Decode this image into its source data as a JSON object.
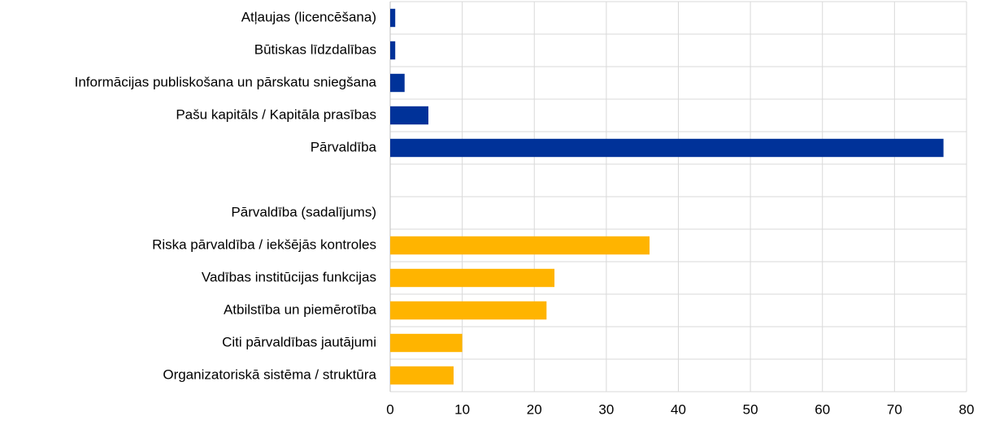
{
  "chart_data": {
    "type": "bar",
    "orientation": "horizontal",
    "categories": [
      "Atļaujas (licencēšana)",
      "Būtiskas līdzdalības",
      "Informācijas publiskošana un pārskatu sniegšana",
      "Pašu kapitāls / Kapitāla prasības",
      "Pārvaldība",
      null,
      "Pārvaldība (sadalījums)",
      "Riska pārvaldība / iekšējās kontroles",
      "Vadības institūcijas funkcijas",
      "Atbilstība un piemērotība",
      "Citi pārvaldības jautājumi",
      "Organizatoriskā sistēma / struktūra"
    ],
    "values": [
      0.7,
      0.7,
      2.0,
      5.3,
      76.8,
      null,
      null,
      36.0,
      22.8,
      21.7,
      10.0,
      8.8
    ],
    "colors": [
      "#003299",
      "#003299",
      "#003299",
      "#003299",
      "#003299",
      null,
      null,
      "#ffb400",
      "#ffb400",
      "#ffb400",
      "#ffb400",
      "#ffb400"
    ],
    "xlim": [
      0,
      80
    ],
    "xticks": [
      0,
      10,
      20,
      30,
      40,
      50,
      60,
      70,
      80
    ],
    "grid": true
  }
}
